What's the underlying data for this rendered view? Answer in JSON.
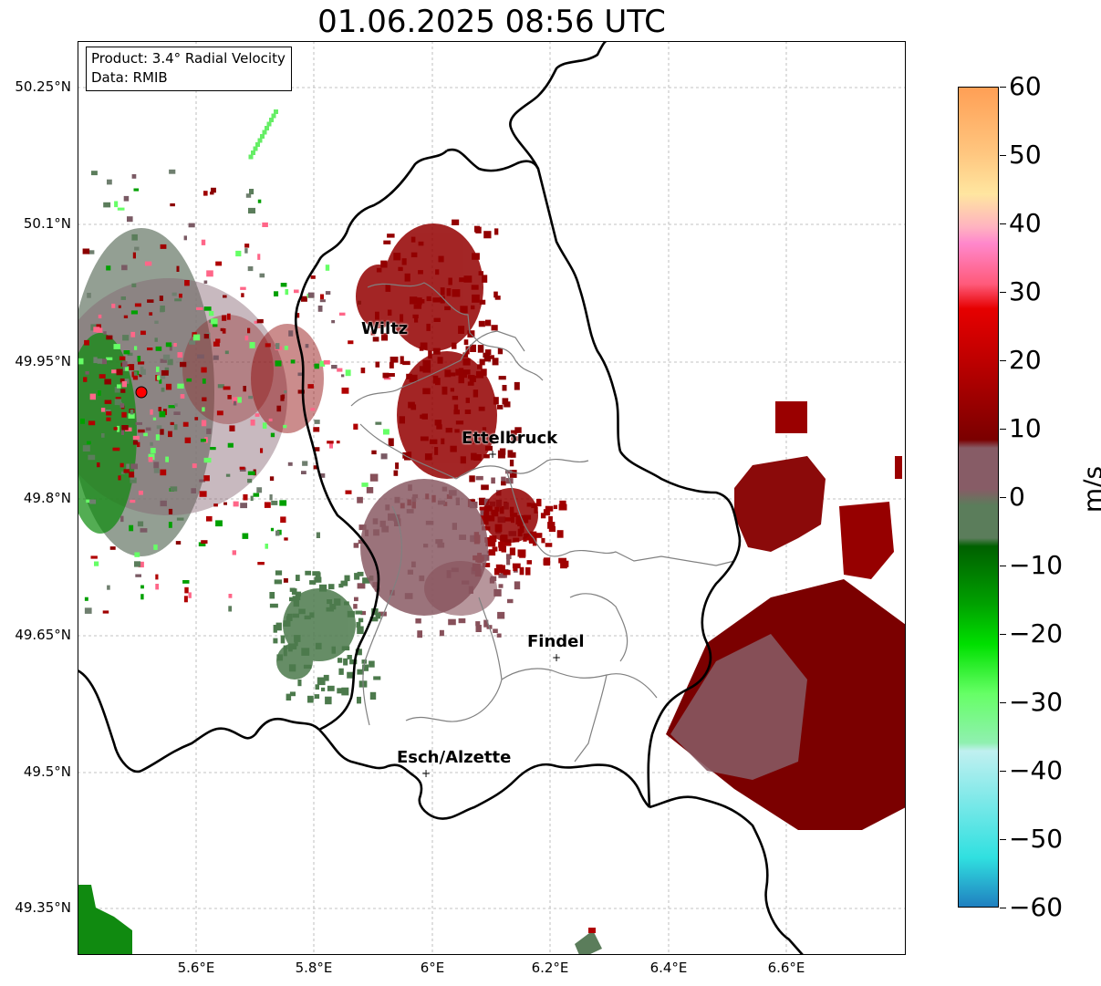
{
  "title": "01.06.2025 08:56 UTC",
  "info": {
    "product": "Product: 3.4° Radial Velocity",
    "data": "Data: RMIB"
  },
  "lat_labels": [
    "50.25°N",
    "50.1°N",
    "49.95°N",
    "49.8°N",
    "49.65°N",
    "49.5°N",
    "49.35°N"
  ],
  "lon_labels": [
    "5.6°E",
    "5.8°E",
    "6°E",
    "6.2°E",
    "6.4°E",
    "6.6°E"
  ],
  "cities": [
    {
      "name": "Wiltz"
    },
    {
      "name": "Ettelbruck"
    },
    {
      "name": "Findel"
    },
    {
      "name": "Esch/Alzette"
    }
  ],
  "colorbar": {
    "unit": "m/s",
    "ticks": [
      "60",
      "50",
      "40",
      "30",
      "20",
      "10",
      "0",
      "−10",
      "−20",
      "−30",
      "−40",
      "−50",
      "−60"
    ],
    "range": [
      -60,
      60
    ],
    "colors": {
      "positive_strong": "#ff9f55",
      "positive_mid": "#ff5a7a",
      "red": "#e60000",
      "dark_red": "#7a0000",
      "neutral_pos": "#875c66",
      "neutral_neg": "#5b7d5b",
      "green": "#00a000",
      "light_green": "#66ff66",
      "cyan": "#30e0e0",
      "blue": "#2080c0"
    }
  },
  "radar_site": {
    "color": "#ff0000"
  }
}
